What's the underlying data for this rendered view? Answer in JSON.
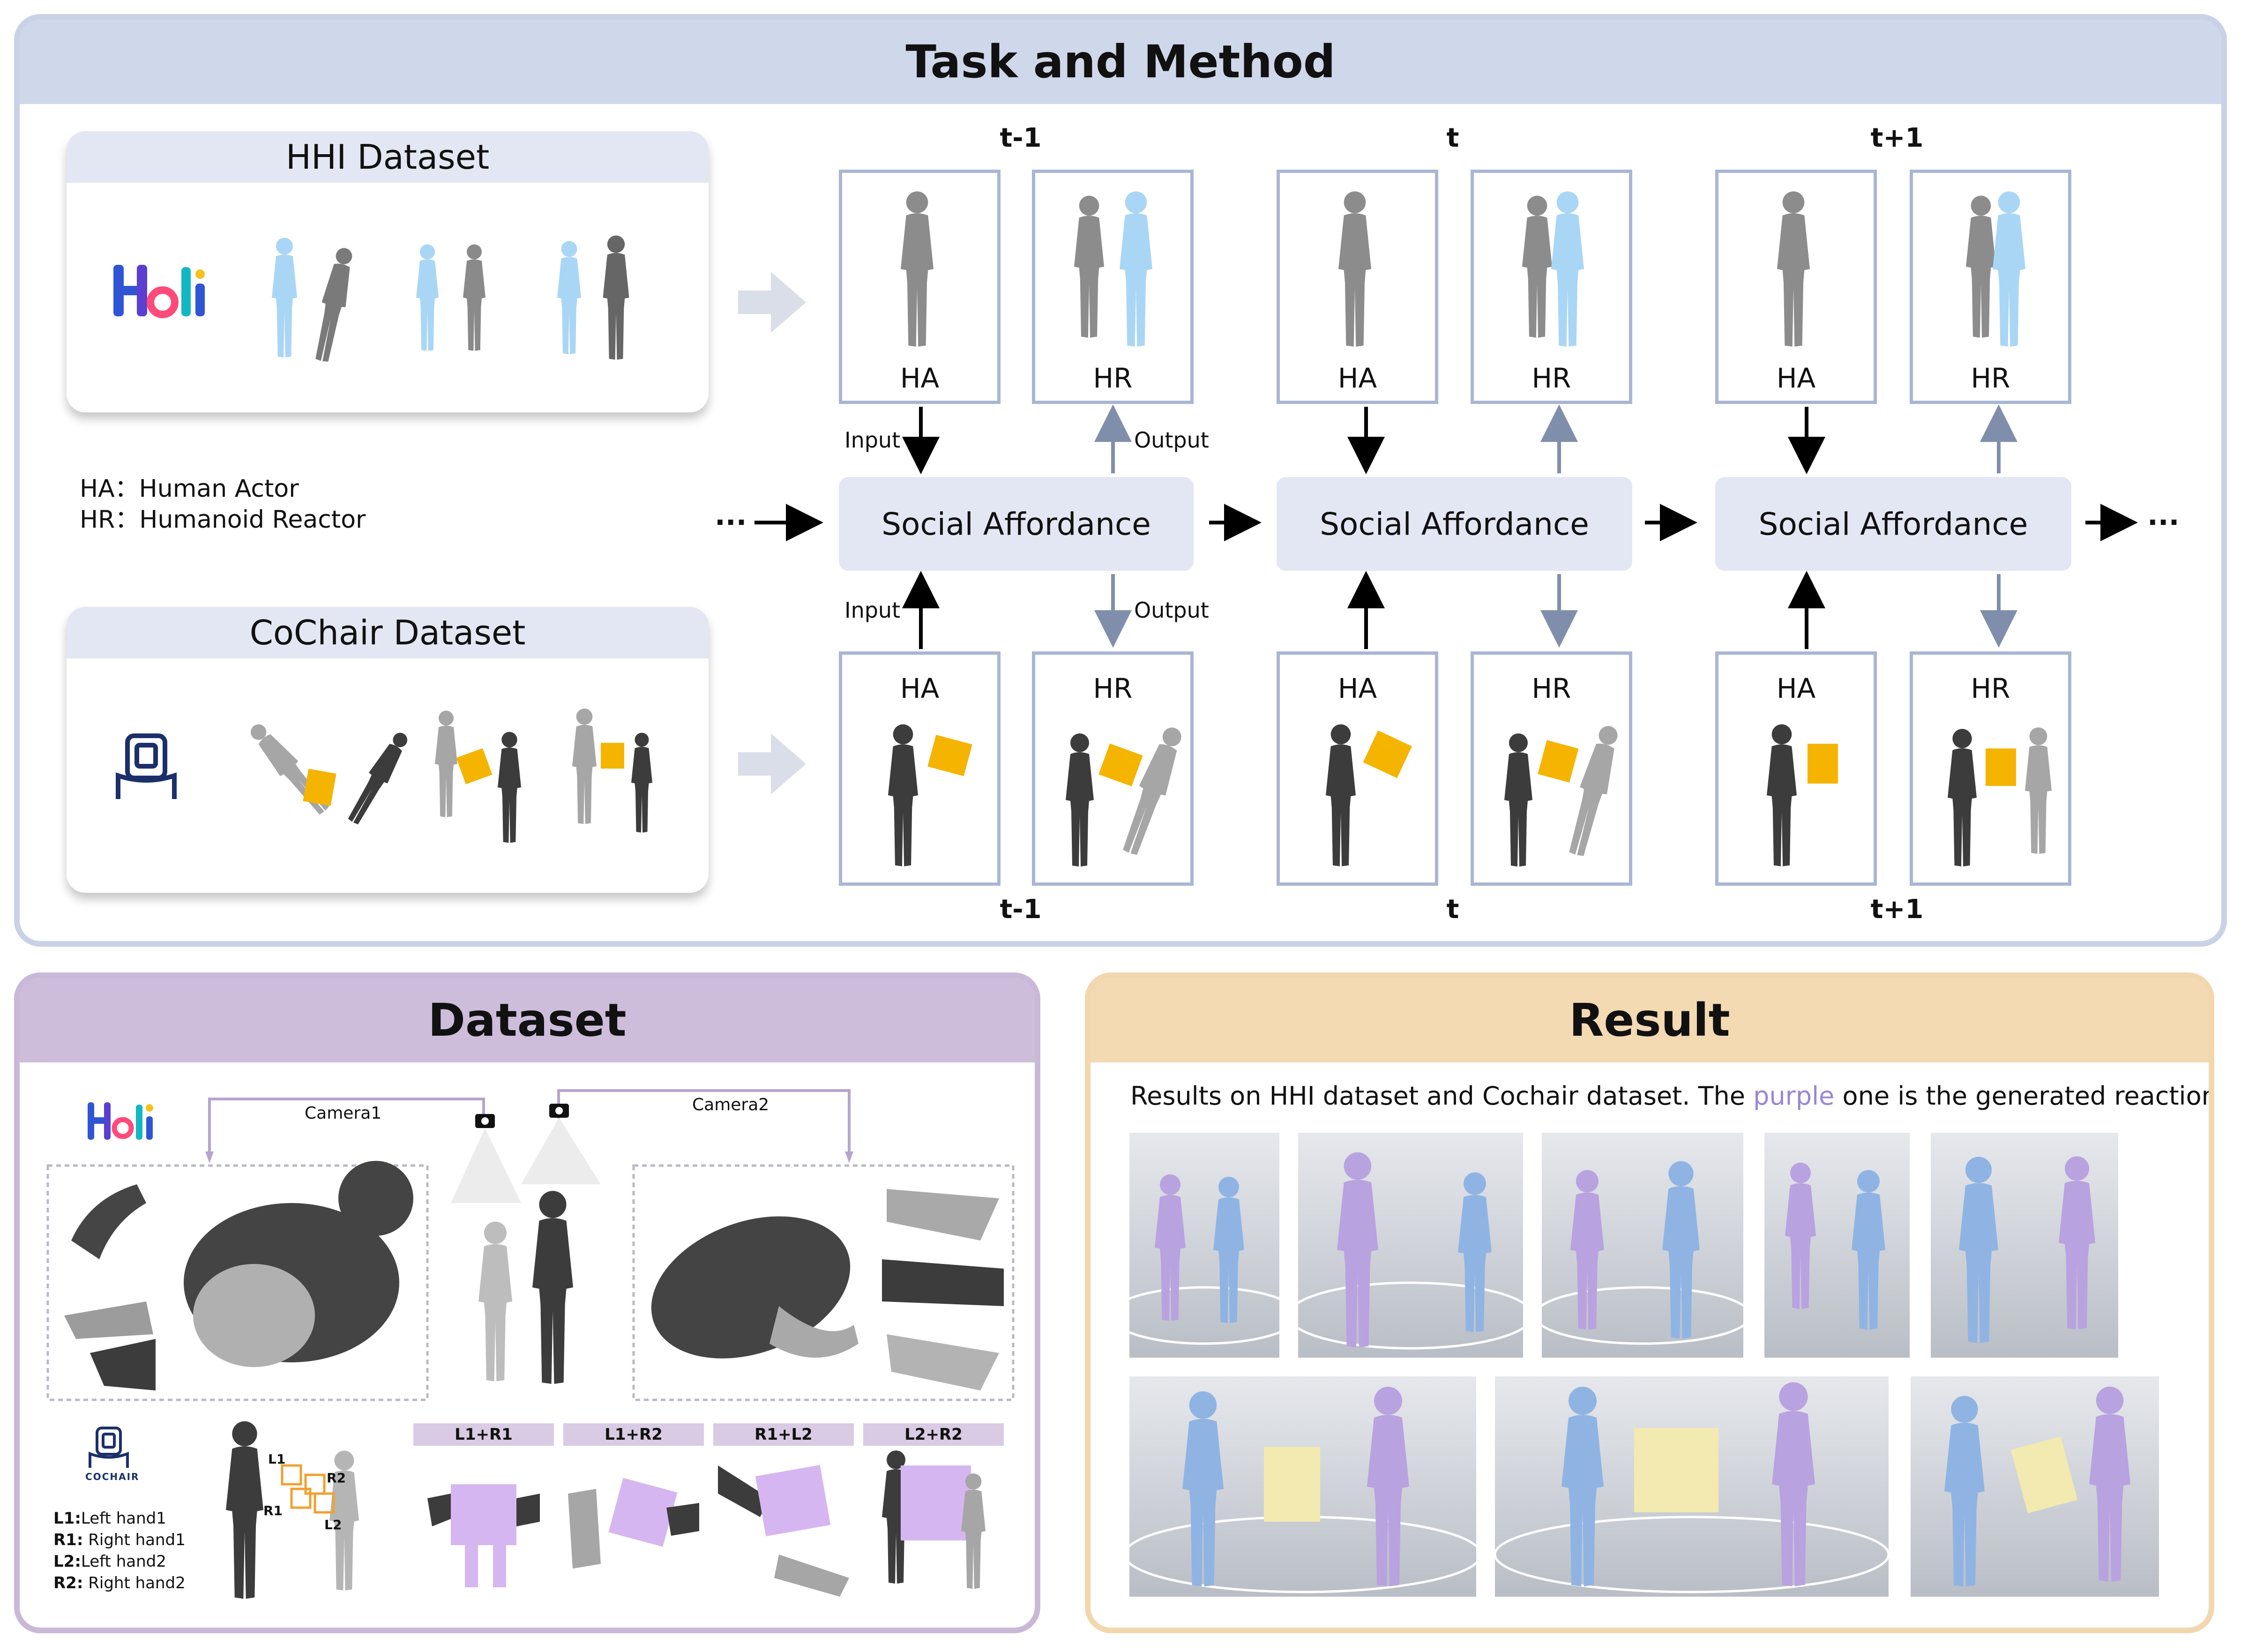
{
  "task_panel": {
    "title": "Task and Method"
  },
  "hhi_card": {
    "title": "HHI Dataset"
  },
  "cochair_card": {
    "title": "CoChair Dataset",
    "logo_text": "COCHAIR"
  },
  "legend": {
    "line1": "HA：Human Actor",
    "line2": "HR：Humanoid Reactor"
  },
  "timeline": {
    "top_labels": [
      "t-1",
      "t",
      "t+1"
    ],
    "bottom_labels": [
      "t-1",
      "t",
      "t+1"
    ],
    "social_affordance": "Social Affordance",
    "ha": "HA",
    "hr": "HR",
    "input": "Input",
    "output": "Output",
    "ellipsis": "···"
  },
  "dataset_panel": {
    "title": "Dataset",
    "camera1": "Camera1",
    "camera2": "Camera2",
    "cochair_logo": "COCHAIR",
    "hand_labels": [
      "L1",
      "R1",
      "R2",
      "L2"
    ],
    "hand_legend": [
      {
        "key": "L1:",
        "text": "Left hand1"
      },
      {
        "key": "R1:",
        "text": " Right hand1"
      },
      {
        "key": "L2:",
        "text": "Left hand2"
      },
      {
        "key": "R2:",
        "text": " Right hand2"
      }
    ],
    "combos": [
      "L1+R1",
      "L1+R2",
      "R1+L2",
      "L2+R2"
    ]
  },
  "result_panel": {
    "title": "Result",
    "caption_pre": "Results on HHI dataset and Cochair dataset. The ",
    "caption_highlight": "purple",
    "caption_post": " one is the generated reaction"
  },
  "colors": {
    "task_border": "#c9d1e6",
    "dataset_border": "#c9b8d8",
    "result_border": "#f2d7ae",
    "human_actor": "#555555",
    "humanoid_reactor": "#a9d6f5",
    "chair": "#f5b400",
    "generated": "#b9a2e0",
    "actor_blue": "#8fb4e3",
    "arrow_light": "#7f8fab"
  }
}
